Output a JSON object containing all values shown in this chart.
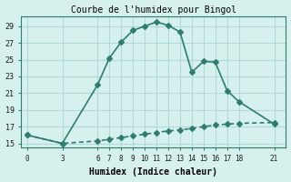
{
  "title": "Courbe de l'humidex pour Bingol",
  "xlabel": "Humidex (Indice chaleur)",
  "ylabel": "",
  "bg_color": "#d6f0ee",
  "line_color": "#2e7d6e",
  "grid_color": "#b0d8d4",
  "x_ticks": [
    0,
    3,
    6,
    7,
    8,
    9,
    10,
    11,
    12,
    13,
    14,
    15,
    16,
    17,
    18,
    21
  ],
  "y_ticks": [
    15,
    17,
    19,
    21,
    23,
    25,
    27,
    29
  ],
  "ylim": [
    14.5,
    30.2
  ],
  "xlim": [
    -0.5,
    22
  ],
  "series1_x": [
    0,
    3,
    6,
    7,
    8,
    9,
    10,
    11,
    12,
    13,
    14,
    15,
    16,
    17,
    18,
    21
  ],
  "series1_y": [
    16.0,
    15.0,
    22.0,
    25.2,
    27.1,
    28.5,
    29.0,
    29.5,
    29.1,
    28.3,
    23.5,
    24.8,
    24.7,
    21.3,
    20.0,
    17.3
  ],
  "series2_x": [
    0,
    3,
    6,
    7,
    8,
    9,
    10,
    11,
    12,
    13,
    14,
    15,
    16,
    17,
    18,
    21
  ],
  "series2_y": [
    16.0,
    15.0,
    15.3,
    15.5,
    15.7,
    15.9,
    16.1,
    16.3,
    16.5,
    16.6,
    16.8,
    17.0,
    17.2,
    17.3,
    17.4,
    17.5
  ],
  "marker": "D",
  "markersize": 3,
  "linewidth": 1.2
}
